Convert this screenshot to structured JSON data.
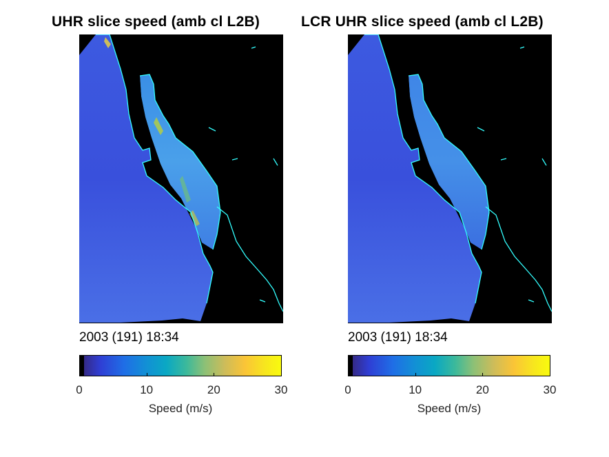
{
  "figure": {
    "panels": [
      {
        "title": "UHR slice speed (amb cl L2B)",
        "timestamp": "2003 (191) 18:34"
      },
      {
        "title": "LCR UHR slice speed (amb cl L2B)",
        "timestamp": "2003 (191) 18:34"
      }
    ],
    "colorbar": {
      "label": "Speed (m/s)",
      "ticks": [
        "0",
        "10",
        "20",
        "30"
      ],
      "colormap": "parula",
      "colors": {
        "land_background": "#000000",
        "coastline": "#33ffff",
        "ocean_speed_low": "#3b4fd9",
        "ocean_speed_mid": "#2aa6d8"
      }
    }
  },
  "chart_data": [
    {
      "type": "heatmap",
      "title": "UHR slice speed (amb cl L2B)",
      "annotation": "2003 (191) 18:34",
      "colorbar_label": "Speed (m/s)",
      "clim": [
        0,
        30
      ],
      "colorbar_ticks": [
        0,
        10,
        20,
        30
      ],
      "typical_speed_range": [
        3,
        10
      ],
      "gulf_speed_range": [
        6,
        22
      ]
    },
    {
      "type": "heatmap",
      "title": "LCR UHR slice speed (amb cl L2B)",
      "annotation": "2003 (191) 18:34",
      "colorbar_label": "Speed (m/s)",
      "clim": [
        0,
        30
      ],
      "colorbar_ticks": [
        0,
        10,
        20,
        30
      ],
      "typical_speed_range": [
        3,
        9
      ],
      "gulf_speed_range": [
        6,
        12
      ]
    }
  ]
}
